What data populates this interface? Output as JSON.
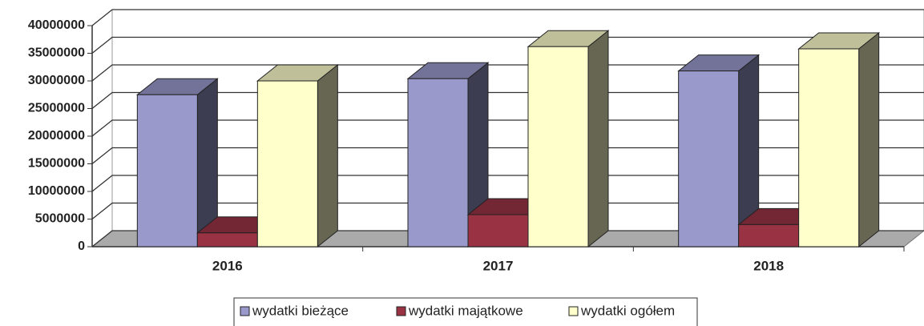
{
  "chart_data": {
    "type": "bar3d",
    "categories": [
      "2016",
      "2017",
      "2018"
    ],
    "series": [
      {
        "name": "wydatki bieżące",
        "color": "#9999cc",
        "values": [
          27500000,
          30400000,
          31800000
        ]
      },
      {
        "name": "wydatki majątkowe",
        "color": "#993344",
        "values": [
          2500000,
          5800000,
          4000000
        ]
      },
      {
        "name": "wydatki ogółem",
        "color": "#ffffcc",
        "values": [
          30000000,
          36200000,
          35800000
        ]
      }
    ],
    "ylim": [
      0,
      40000000
    ],
    "yticks": [
      0,
      5000000,
      10000000,
      15000000,
      20000000,
      25000000,
      30000000,
      35000000,
      40000000
    ],
    "grid": true,
    "legend": "bottom"
  }
}
